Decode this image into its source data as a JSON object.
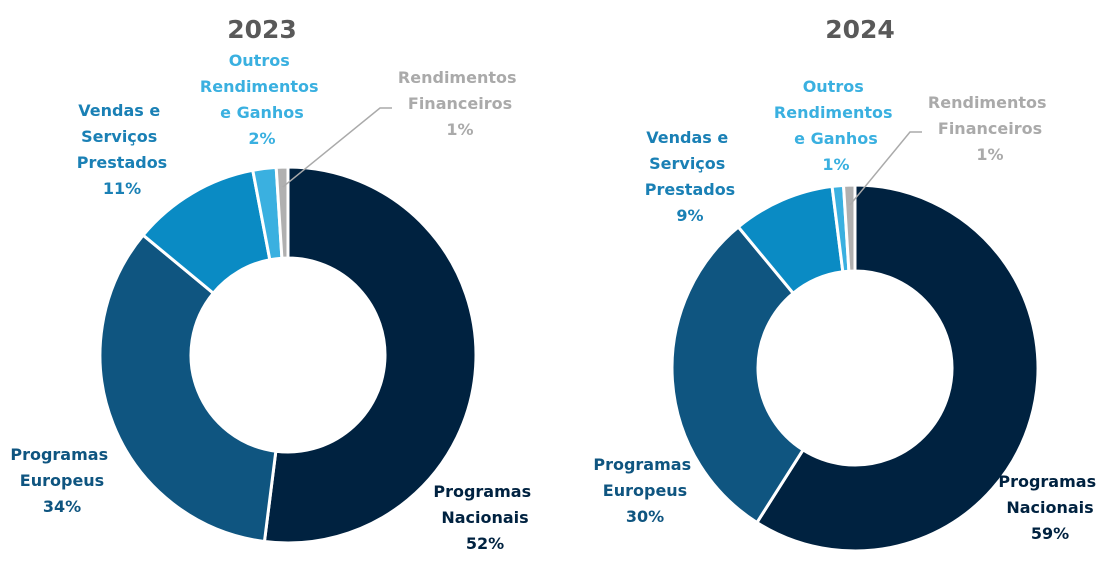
{
  "chart_data": [
    {
      "type": "pie",
      "title": "2023",
      "categories": [
        "Programas Nacionais",
        "Programas Europeus",
        "Vendas e Serviços Prestados",
        "Outros Rendimentos e Ganhos",
        "Rendimentos Financeiros"
      ],
      "values": [
        52,
        34,
        11,
        2,
        1
      ],
      "value_labels": [
        "52%",
        "34%",
        "11%",
        "2%",
        "1%"
      ],
      "colors": [
        "#002240",
        "#0f5580",
        "#0a8bc4",
        "#3ab0e0",
        "#b0b0b0"
      ]
    },
    {
      "type": "pie",
      "title": "2024",
      "categories": [
        "Programas Nacionais",
        "Programas Europeus",
        "Vendas e Serviços Prestados",
        "Outros Rendimentos e Ganhos",
        "Rendimentos Financeiros"
      ],
      "values": [
        59,
        30,
        9,
        1,
        1
      ],
      "value_labels": [
        "59%",
        "30%",
        "9%",
        "1%",
        "1%"
      ],
      "colors": [
        "#002240",
        "#0f5580",
        "#0a8bc4",
        "#3ab0e0",
        "#b0b0b0"
      ]
    }
  ]
}
